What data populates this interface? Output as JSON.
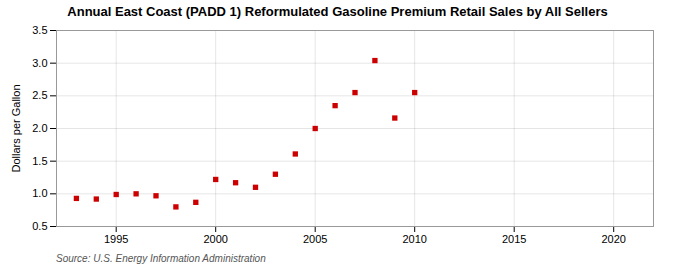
{
  "chart_data": {
    "type": "scatter",
    "title": "Annual East Coast (PADD 1) Reformulated Gasoline Premium Retail Sales by All Sellers",
    "ylabel": "Dollars per Gallon",
    "source": "Source: U.S. Energy Information Administration",
    "x": [
      1993,
      1994,
      1995,
      1996,
      1997,
      1998,
      1999,
      2000,
      2001,
      2002,
      2003,
      2004,
      2005,
      2006,
      2007,
      2008,
      2009,
      2010
    ],
    "values": [
      0.93,
      0.92,
      0.99,
      1.0,
      0.97,
      0.8,
      0.87,
      1.22,
      1.17,
      1.1,
      1.3,
      1.61,
      2.0,
      2.35,
      2.55,
      3.04,
      2.16,
      2.55
    ],
    "color": "#cc0000",
    "marker": "square",
    "xlim": [
      1992,
      2022
    ],
    "ylim": [
      0.5,
      3.5
    ],
    "xticks": [
      1995,
      2000,
      2005,
      2010,
      2015,
      2020
    ],
    "yticks": [
      0.5,
      {
        "value": 1,
        "label": "1.0"
      },
      1.5,
      {
        "value": 2,
        "label": "2.0"
      },
      2.5,
      {
        "value": 3,
        "label": "3.0"
      },
      3.5
    ],
    "grid": true
  }
}
